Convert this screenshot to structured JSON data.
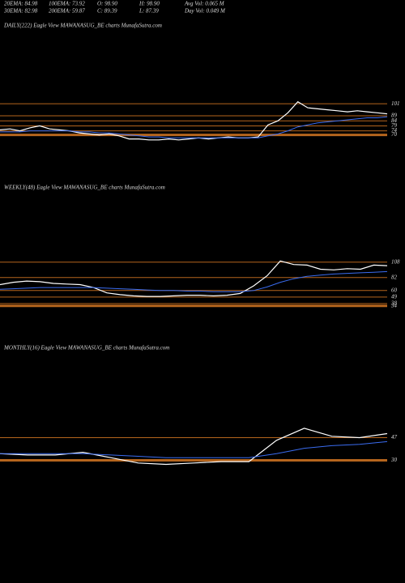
{
  "header": {
    "rows": [
      [
        "20EMA: 84.98",
        "100EMA: 73.92",
        "O: 98.90",
        "H: 98.90",
        "Avg Vol: 0.065 M"
      ],
      [
        "30EMA: 82.98",
        "200EMA: 59.87",
        "C: 89.39",
        "L: 87.39",
        "Day Vol: 0.049 M"
      ]
    ]
  },
  "chart_data": [
    {
      "type": "line",
      "title": "DAILY(222) Eagle  View  MAWANASUG_BE charts MunafaSutra.com",
      "ylim": [
        60,
        110
      ],
      "yticks": [
        101,
        89,
        84,
        79,
        74,
        70
      ],
      "series": [
        {
          "color": "#ffffff",
          "values": [
            75,
            76,
            74,
            77,
            79,
            76,
            75,
            74,
            72,
            71,
            70,
            71,
            69,
            66,
            66,
            65,
            65,
            66,
            65,
            66,
            67,
            66,
            67,
            68,
            67,
            67,
            68,
            80,
            84,
            92,
            103,
            97,
            96,
            95,
            94,
            93,
            94,
            93,
            92,
            91
          ]
        },
        {
          "color": "#3a6cf0",
          "values": [
            73,
            73,
            73,
            74,
            74,
            74,
            74,
            74,
            73,
            73,
            72,
            72,
            71,
            70,
            69,
            68,
            68,
            67,
            67,
            67,
            67,
            67,
            67,
            67,
            67,
            67,
            67,
            69,
            71,
            74,
            78,
            80,
            82,
            83,
            84,
            85,
            86,
            87,
            87,
            88
          ]
        }
      ]
    },
    {
      "type": "line",
      "title": "WEEKLY(48) Eagle  View  MAWANASUG_BE charts MunafaSutra.com",
      "ylim": [
        20,
        120
      ],
      "yticks": [
        108,
        82,
        60,
        49,
        38,
        34
      ],
      "series": [
        {
          "color": "#ffffff",
          "values": [
            70,
            74,
            76,
            75,
            72,
            71,
            70,
            65,
            56,
            53,
            51,
            50,
            50,
            51,
            52,
            52,
            51,
            52,
            55,
            68,
            85,
            110,
            104,
            103,
            96,
            95,
            97,
            96,
            103,
            102
          ]
        },
        {
          "color": "#3a6cf0",
          "values": [
            62,
            63,
            64,
            65,
            65,
            65,
            65,
            65,
            64,
            63,
            62,
            61,
            60,
            60,
            59,
            59,
            58,
            58,
            58,
            60,
            66,
            74,
            80,
            84,
            86,
            88,
            89,
            90,
            91,
            92
          ]
        }
      ]
    },
    {
      "type": "line",
      "title": "MONTHLY(16) Eagle  View  MAWANASUG_BE charts MunafaSutra.com",
      "ylim": [
        20,
        60
      ],
      "yticks": [
        47,
        30
      ],
      "series": [
        {
          "color": "#ffffff",
          "values": [
            35,
            34,
            34,
            36,
            32,
            28,
            27,
            28,
            29,
            29,
            45,
            54,
            48,
            47,
            50
          ]
        },
        {
          "color": "#3a6cf0",
          "values": [
            35,
            35,
            35,
            35,
            34,
            33,
            32,
            32,
            32,
            32,
            35,
            39,
            41,
            42,
            44
          ]
        }
      ]
    }
  ]
}
